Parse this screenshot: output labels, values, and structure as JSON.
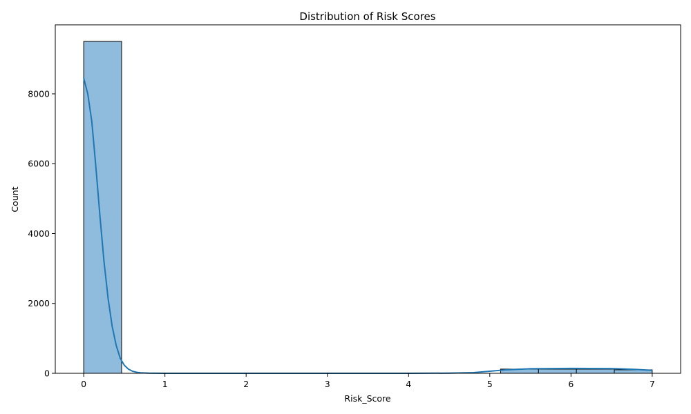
{
  "chart_data": {
    "type": "bar",
    "title": "Distribution of Risk Scores",
    "xlabel": "Risk_Score",
    "ylabel": "Count",
    "xlim": [
      -0.35,
      7.35
    ],
    "ylim": [
      0,
      9975
    ],
    "xticks": [
      0,
      1,
      2,
      3,
      4,
      5,
      6,
      7
    ],
    "yticks": [
      0,
      2000,
      4000,
      6000,
      8000
    ],
    "bin_edges": [
      0,
      0.4667,
      0.9333,
      1.4,
      1.8667,
      2.3333,
      2.8,
      3.2667,
      3.7333,
      4.2,
      4.6667,
      5.1333,
      5.6,
      6.0667,
      6.5333,
      7.0
    ],
    "values": [
      9500,
      0,
      0,
      0,
      0,
      0,
      0,
      0,
      0,
      0,
      0,
      120,
      120,
      120,
      100
    ],
    "kde": {
      "x": [
        0,
        0.05,
        0.1,
        0.15,
        0.2,
        0.25,
        0.3,
        0.35,
        0.4,
        0.45,
        0.5,
        0.55,
        0.6,
        0.65,
        0.7,
        0.8,
        0.9,
        1.0,
        1.5,
        2.0,
        3.0,
        4.0,
        4.5,
        4.8,
        5.0,
        5.2,
        5.5,
        6.0,
        6.5,
        6.8,
        7.0
      ],
      "y": [
        8450,
        8000,
        7200,
        5900,
        4500,
        3200,
        2150,
        1350,
        800,
        430,
        230,
        120,
        60,
        30,
        15,
        5,
        2,
        0,
        0,
        0,
        0,
        0,
        5,
        20,
        60,
        100,
        130,
        140,
        135,
        110,
        85
      ]
    },
    "bar_color": "#8fbbdc",
    "bar_edge": "#000000",
    "kde_color": "#1f77b4",
    "grid": false,
    "legend": "none"
  }
}
